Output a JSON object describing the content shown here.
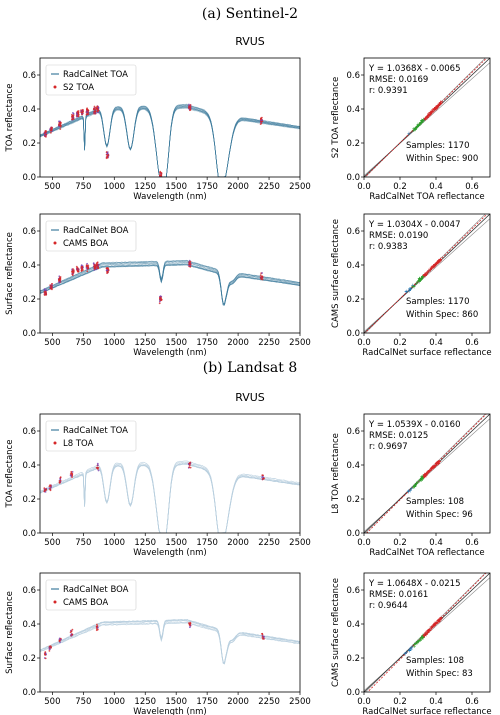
{
  "figure": {
    "sections": [
      {
        "heading": "(a) Sentinel-2",
        "site": "RVUS"
      },
      {
        "heading": "(b) Landsat 8",
        "site": "RVUS"
      }
    ]
  },
  "colors": {
    "spectra": "#3f7d9e",
    "spectra_light": "#b9cfdf",
    "measure": "#d62728",
    "measure_alt": "#7b3fb0",
    "samples_low": "#1f77b4",
    "samples_mid": "#2ca02c",
    "samples_high": "#d62728",
    "fit_line": "#d62728",
    "one_one": "#333333",
    "spec_bounds": "#888888"
  },
  "chart_data": [
    {
      "id": "s2_toa_spectrum",
      "type": "line",
      "xlabel": "Wavelength (nm)",
      "ylabel": "TOA reflectance",
      "xlim": [
        400,
        2500
      ],
      "ylim": [
        0,
        0.7
      ],
      "xticks": [
        500,
        750,
        1000,
        1250,
        1500,
        1750,
        2000,
        2250,
        2500
      ],
      "yticks": [
        0.0,
        0.2,
        0.4,
        0.6
      ],
      "legend": {
        "position": "top-left",
        "entries": [
          "RadCalNet TOA",
          "S2 TOA"
        ]
      },
      "mode": "toa",
      "density": "dense",
      "bands_nm": [
        443,
        490,
        560,
        665,
        705,
        740,
        783,
        842,
        865,
        945,
        1375,
        1610,
        2190
      ],
      "band_means": [
        0.255,
        0.28,
        0.31,
        0.355,
        0.37,
        0.38,
        0.385,
        0.395,
        0.4,
        0.13,
        0.01,
        0.41,
        0.33
      ]
    },
    {
      "id": "s2_toa_scatter",
      "type": "scatter",
      "xlabel": "RadCalNet TOA reflectance",
      "ylabel": "S2 TOA reflectance",
      "xlim": [
        0,
        0.7
      ],
      "ylim": [
        0,
        0.7
      ],
      "xticks": [
        0.0,
        0.2,
        0.4,
        0.6
      ],
      "yticks": [
        0.0,
        0.2,
        0.4,
        0.6
      ],
      "fit": {
        "slope": 1.0368,
        "intercept": -0.0065
      },
      "stats": [
        "Y = 1.0368X - 0.0065",
        "RMSE: 0.0169",
        "r: 0.9391"
      ],
      "samples": [
        "Samples: 1170",
        "Within Spec: 900"
      ],
      "cluster": {
        "x_min": 0.24,
        "x_max": 0.43
      }
    },
    {
      "id": "s2_boa_spectrum",
      "type": "line",
      "xlabel": "Wavelength (nm)",
      "ylabel": "Surface reflectance",
      "xlim": [
        400,
        2500
      ],
      "ylim": [
        0,
        0.7
      ],
      "xticks": [
        500,
        750,
        1000,
        1250,
        1500,
        1750,
        2000,
        2250,
        2500
      ],
      "yticks": [
        0.0,
        0.2,
        0.4,
        0.6
      ],
      "legend": {
        "position": "top-left",
        "entries": [
          "RadCalNet BOA",
          "CAMS BOA"
        ]
      },
      "mode": "boa",
      "density": "dense",
      "bands_nm": [
        443,
        490,
        560,
        665,
        705,
        740,
        783,
        842,
        865,
        945,
        1375,
        1610,
        2190
      ],
      "band_means": [
        0.24,
        0.27,
        0.31,
        0.36,
        0.37,
        0.38,
        0.385,
        0.39,
        0.395,
        0.37,
        0.2,
        0.41,
        0.33
      ]
    },
    {
      "id": "s2_boa_scatter",
      "type": "scatter",
      "xlabel": "RadCalNet surface reflectance",
      "ylabel": "CAMS surface reflectance",
      "xlim": [
        0,
        0.7
      ],
      "ylim": [
        0,
        0.7
      ],
      "xticks": [
        0.0,
        0.2,
        0.4,
        0.6
      ],
      "yticks": [
        0.0,
        0.2,
        0.4,
        0.6
      ],
      "fit": {
        "slope": 1.0304,
        "intercept": -0.0047
      },
      "stats": [
        "Y = 1.0304X - 0.0047",
        "RMSE: 0.0190",
        "r: 0.9383"
      ],
      "samples": [
        "Samples: 1170",
        "Within Spec: 860"
      ],
      "cluster": {
        "x_min": 0.23,
        "x_max": 0.43
      }
    },
    {
      "id": "l8_toa_spectrum",
      "type": "line",
      "xlabel": "Wavelength (nm)",
      "ylabel": "TOA reflectance",
      "xlim": [
        400,
        2500
      ],
      "ylim": [
        0,
        0.7
      ],
      "xticks": [
        500,
        750,
        1000,
        1250,
        1500,
        1750,
        2000,
        2250,
        2500
      ],
      "yticks": [
        0.0,
        0.2,
        0.4,
        0.6
      ],
      "legend": {
        "position": "top-left",
        "entries": [
          "RadCalNet TOA",
          "L8 TOA"
        ]
      },
      "mode": "toa",
      "density": "light",
      "bands_nm": [
        443,
        482,
        561,
        655,
        865,
        1609,
        2201
      ],
      "band_means": [
        0.25,
        0.27,
        0.31,
        0.35,
        0.39,
        0.4,
        0.32
      ]
    },
    {
      "id": "l8_toa_scatter",
      "type": "scatter",
      "xlabel": "RadCalNet TOA reflectance",
      "ylabel": "L8 TOA reflectance",
      "xlim": [
        0,
        0.7
      ],
      "ylim": [
        0,
        0.7
      ],
      "xticks": [
        0.0,
        0.2,
        0.4,
        0.6
      ],
      "yticks": [
        0.0,
        0.2,
        0.4,
        0.6
      ],
      "fit": {
        "slope": 1.0539,
        "intercept": -0.016
      },
      "stats": [
        "Y = 1.0539X - 0.0160",
        "RMSE: 0.0125",
        "r: 0.9697"
      ],
      "samples": [
        "Samples: 108",
        "Within Spec: 96"
      ],
      "cluster": {
        "x_min": 0.24,
        "x_max": 0.42
      }
    },
    {
      "id": "l8_boa_spectrum",
      "type": "line",
      "xlabel": "Wavelength (nm)",
      "ylabel": "Surface reflectance",
      "xlim": [
        400,
        2500
      ],
      "ylim": [
        0,
        0.7
      ],
      "xticks": [
        500,
        750,
        1000,
        1250,
        1500,
        1750,
        2000,
        2250,
        2500
      ],
      "yticks": [
        0.0,
        0.2,
        0.4,
        0.6
      ],
      "legend": {
        "position": "top-left",
        "entries": [
          "RadCalNet BOA",
          "CAMS BOA"
        ]
      },
      "mode": "boa",
      "density": "light",
      "bands_nm": [
        443,
        482,
        561,
        655,
        865,
        1609,
        2201
      ],
      "band_means": [
        0.22,
        0.26,
        0.31,
        0.35,
        0.38,
        0.4,
        0.33
      ]
    },
    {
      "id": "l8_boa_scatter",
      "type": "scatter",
      "xlabel": "RadCalNet surface reflectance",
      "ylabel": "CAMS surface reflectance",
      "xlim": [
        0,
        0.7
      ],
      "ylim": [
        0,
        0.7
      ],
      "xticks": [
        0.0,
        0.2,
        0.4,
        0.6
      ],
      "yticks": [
        0.0,
        0.2,
        0.4,
        0.6
      ],
      "fit": {
        "slope": 1.0648,
        "intercept": -0.0215
      },
      "stats": [
        "Y = 1.0648X - 0.0215",
        "RMSE: 0.0161",
        "r: 0.9644"
      ],
      "samples": [
        "Samples: 108",
        "Within Spec: 83"
      ],
      "cluster": {
        "x_min": 0.22,
        "x_max": 0.43
      }
    }
  ]
}
